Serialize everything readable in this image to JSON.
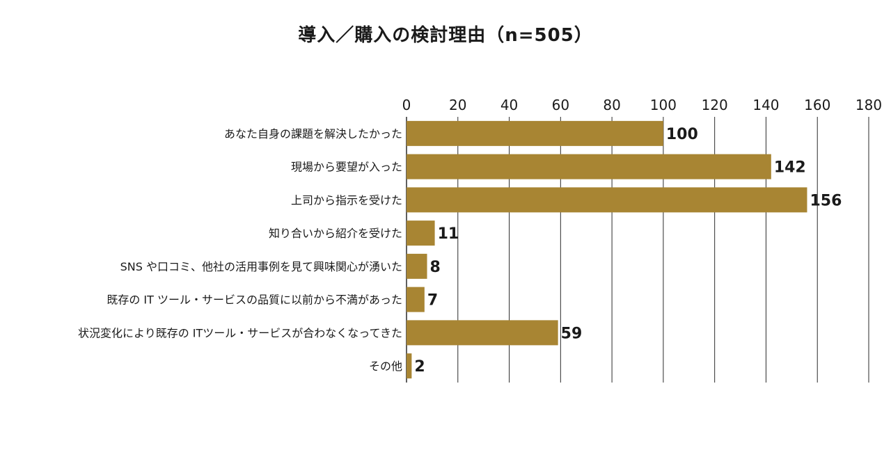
{
  "chart_data": {
    "type": "bar",
    "orientation": "horizontal",
    "title": "導入／購入の検討理由（n=505）",
    "categories": [
      "あなた自身の課題を解決したかった",
      "現場から要望が入った",
      "上司から指示を受けた",
      "知り合いから紹介を受けた",
      "SNS や口コミ、他社の活用事例を見て興味関心が湧いた",
      "既存の IT ツール・サービスの品質に以前から不満があった",
      "状況変化により既存の ITツール・サービスが合わなくなってきた",
      "その他"
    ],
    "values": [
      100,
      142,
      156,
      11,
      8,
      7,
      59,
      2
    ],
    "xlim": [
      0,
      180
    ],
    "xticks": [
      "0",
      "20",
      "40",
      "60",
      "80",
      "100",
      "120",
      "140",
      "160",
      "180"
    ],
    "grid": true,
    "bar_color": "#a88533"
  }
}
